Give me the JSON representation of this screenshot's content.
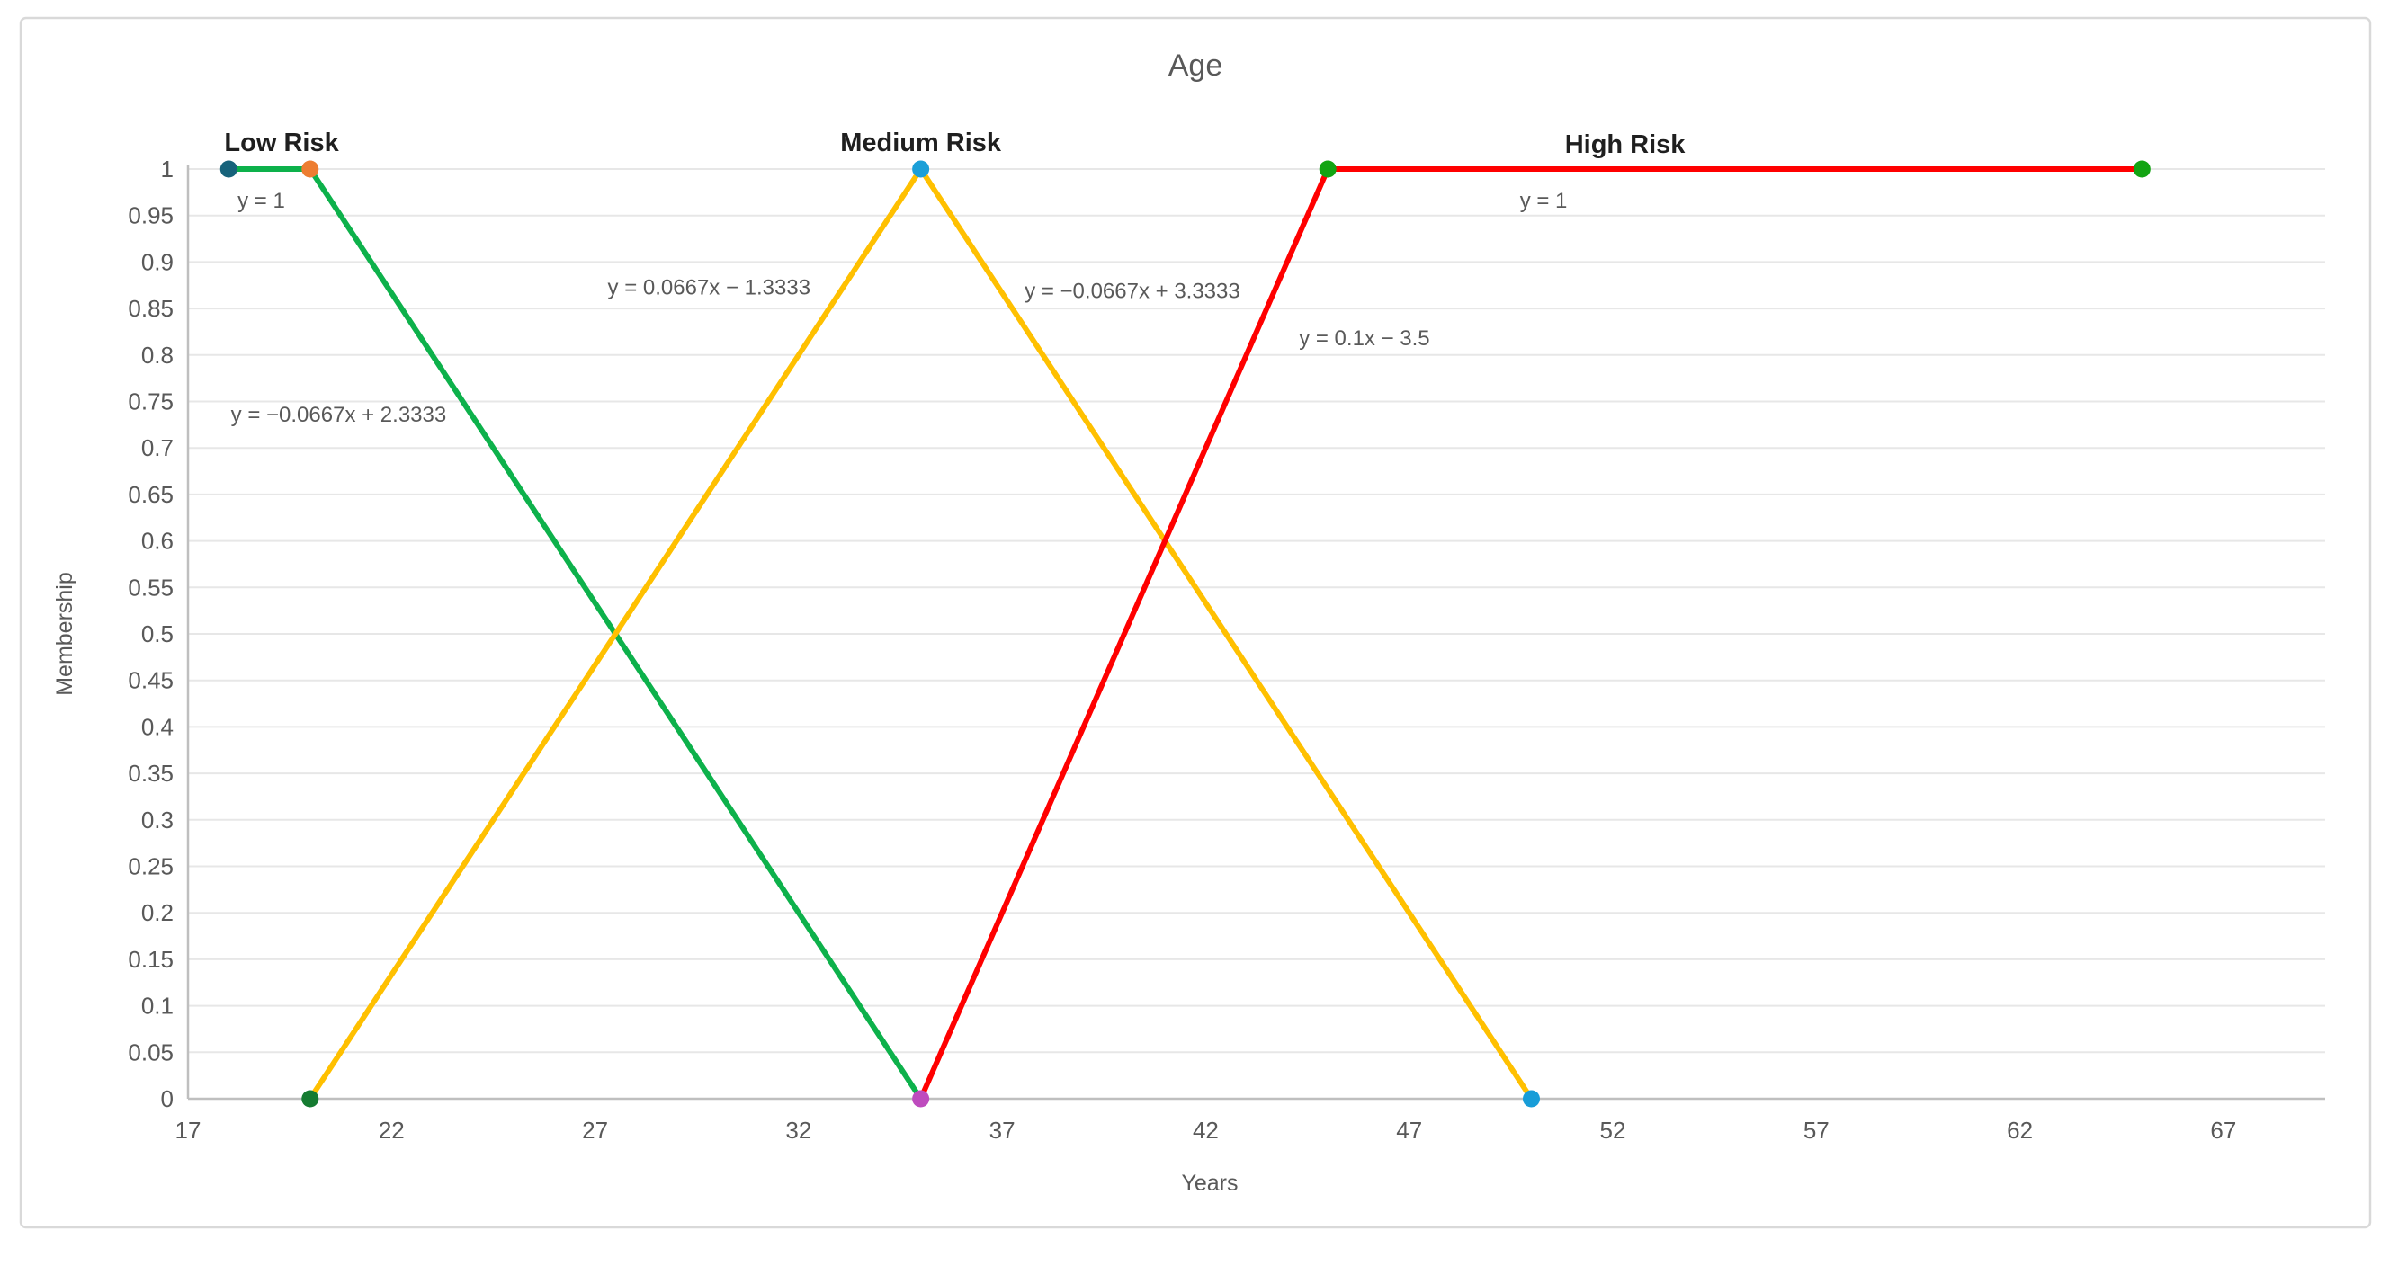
{
  "colors": {
    "background": "#FFFFFF",
    "canvas_border": "#D9D9D9",
    "grid": "#E7E7E7",
    "axis": "#BFBFBF",
    "tick_text": "#595959",
    "title_text": "#595959",
    "axis_title_text": "#595959",
    "annotation_text": "#595959",
    "series_label_text": "#1F1F1F",
    "low_risk_line": "#0DB14B",
    "medium_risk_line": "#FFC000",
    "high_risk_line": "#FF0000"
  },
  "chart_data": {
    "type": "line",
    "title": "Age",
    "xlabel": "Years",
    "ylabel": "Membership",
    "xlim": [
      17,
      69.5
    ],
    "ylim": [
      0,
      1
    ],
    "x_ticks": [
      17,
      22,
      27,
      32,
      37,
      42,
      47,
      52,
      57,
      62,
      67
    ],
    "y_ticks": [
      0,
      0.05,
      0.1,
      0.15,
      0.2,
      0.25,
      0.3,
      0.35,
      0.4,
      0.45,
      0.5,
      0.55,
      0.6,
      0.65,
      0.7,
      0.75,
      0.8,
      0.85,
      0.9,
      0.95,
      1
    ],
    "grid": "horizontal-only",
    "legend": "none",
    "series": [
      {
        "name": "Low Risk",
        "color": "#0DB14B",
        "points": [
          [
            18,
            1
          ],
          [
            20,
            1
          ],
          [
            35,
            0
          ]
        ]
      },
      {
        "name": "Medium Risk",
        "color": "#FFC000",
        "points": [
          [
            20,
            0
          ],
          [
            35,
            1
          ],
          [
            50,
            0
          ]
        ]
      },
      {
        "name": "High Risk",
        "color": "#FF0000",
        "points": [
          [
            35,
            0
          ],
          [
            45,
            1
          ],
          [
            65,
            1
          ]
        ]
      }
    ],
    "markers": [
      {
        "x": 18,
        "y": 1,
        "color": "#17637B",
        "name": "low-risk-start-point"
      },
      {
        "x": 20,
        "y": 1,
        "color": "#ED7D31",
        "name": "low-risk-shoulder-point"
      },
      {
        "x": 20,
        "y": 0,
        "color": "#157B31",
        "name": "medium-risk-start-point"
      },
      {
        "x": 35,
        "y": 1,
        "color": "#1B9FD8",
        "name": "medium-risk-peak-point"
      },
      {
        "x": 35,
        "y": 0,
        "color": "#BE4BBE",
        "name": "low-risk-end-point"
      },
      {
        "x": 45,
        "y": 1,
        "color": "#13A413",
        "name": "high-risk-shoulder-point"
      },
      {
        "x": 50,
        "y": 0,
        "color": "#189DD8",
        "name": "medium-risk-end-point"
      },
      {
        "x": 65,
        "y": 1,
        "color": "#13A413",
        "name": "high-risk-end-point"
      }
    ],
    "series_labels": [
      {
        "text": "Low Risk",
        "x": 19.3,
        "y": 1.029
      },
      {
        "text": "Medium Risk",
        "x": 35.0,
        "y": 1.029
      },
      {
        "text": "High Risk",
        "x": 52.3,
        "y": 1.027
      }
    ],
    "annotations": [
      {
        "text": "y = 1",
        "x": 18.8,
        "y": 0.967
      },
      {
        "text": "y = −0.0667x + 2.3333",
        "x": 20.7,
        "y": 0.737
      },
      {
        "text": "y = 0.0667x − 1.3333",
        "x": 29.8,
        "y": 0.874
      },
      {
        "text": "y = −0.0667x + 3.3333",
        "x": 40.2,
        "y": 0.87
      },
      {
        "text": "y = 0.1x − 3.5",
        "x": 45.9,
        "y": 0.819
      },
      {
        "text": "y = 1",
        "x": 50.3,
        "y": 0.967
      }
    ]
  }
}
